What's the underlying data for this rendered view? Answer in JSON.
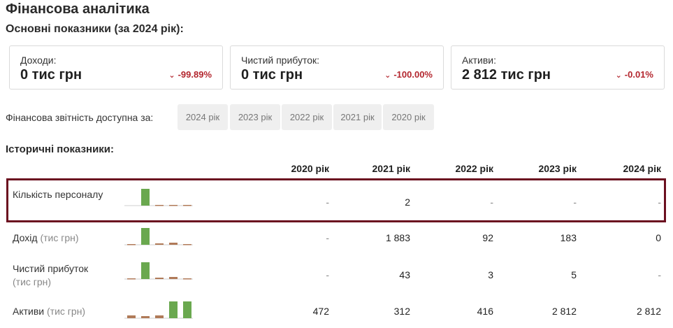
{
  "title": "Фінансова аналітика",
  "subtitle": "Основні показники (за 2024 рік):",
  "cards": [
    {
      "label": "Доходи:",
      "value": "0 тис грн",
      "change": "-99.89%"
    },
    {
      "label": "Чистий прибуток:",
      "value": "0 тис грн",
      "change": "-100.00%"
    },
    {
      "label": "Активи:",
      "value": "2 812 тис грн",
      "change": "-0.01%"
    }
  ],
  "reports": {
    "label": "Фінансова звітність доступна за:",
    "years": [
      "2024 рік",
      "2023 рік",
      "2022 рік",
      "2021 рік",
      "2020 рік"
    ]
  },
  "historical": {
    "title": "Історичні показники:",
    "columns": [
      "2020 рік",
      "2021 рік",
      "2022 рік",
      "2023 рік",
      "2024 рік"
    ],
    "rows": [
      {
        "label": "Кількість персоналу",
        "unit": "",
        "values": [
          "-",
          "2",
          "-",
          "-",
          "-"
        ]
      },
      {
        "label": "Дохід",
        "unit": "(тис грн)",
        "values": [
          "-",
          "1 883",
          "92",
          "183",
          "0"
        ]
      },
      {
        "label": "Чистий прибуток",
        "unit": "(тис грн)",
        "values": [
          "-",
          "43",
          "3",
          "5",
          "-"
        ]
      },
      {
        "label": "Активи",
        "unit": "(тис грн)",
        "values": [
          "472",
          "312",
          "416",
          "2 812",
          "2 812"
        ]
      }
    ]
  },
  "colors": {
    "accent": "#6b0f1f",
    "negative": "#b3262e",
    "bar_green": "#6aa84f",
    "bar_brown": "#b07a58"
  }
}
